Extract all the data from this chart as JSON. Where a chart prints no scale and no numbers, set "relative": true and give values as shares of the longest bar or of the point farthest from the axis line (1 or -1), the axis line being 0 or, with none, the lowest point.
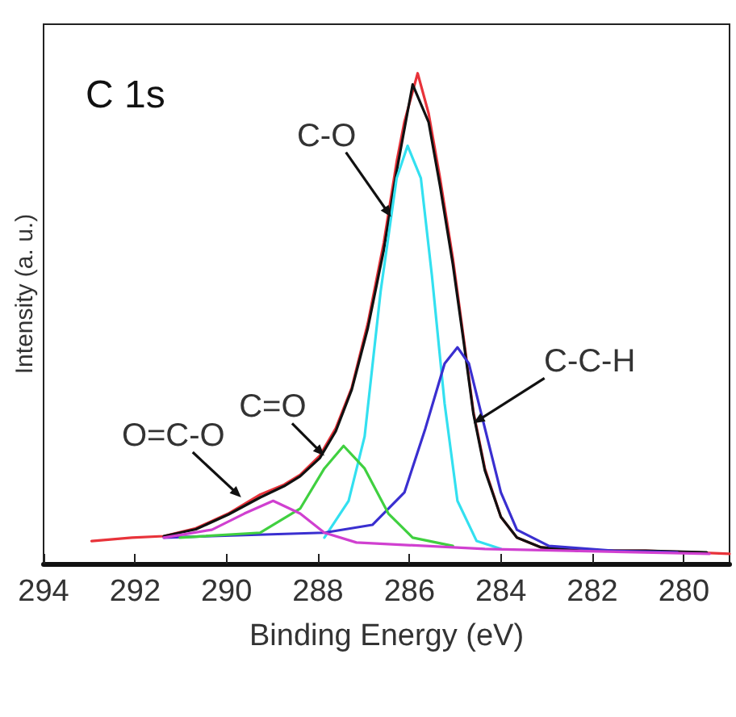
{
  "chart_data": {
    "type": "line",
    "title": "C 1s",
    "xlabel": "Binding Energy (eV)",
    "ylabel": "Intensity (a. u.)",
    "relative": true,
    "xlim": [
      294,
      279
    ],
    "xticks": [
      294,
      292,
      290,
      288,
      286,
      284,
      282,
      280
    ],
    "grid": false,
    "marker": "none",
    "line_style": "solid",
    "series": [
      {
        "color": "#e8333a",
        "x": [
          292.95,
          292.07,
          291.37,
          290.67,
          289.96,
          289.26,
          288.74,
          288.39,
          287.96,
          287.61,
          287.26,
          286.91,
          286.56,
          286.28,
          286.11,
          285.82,
          285.58,
          285.33,
          285.05,
          284.81,
          284.6,
          284.35,
          284.0,
          283.65,
          283.12,
          282.25,
          280.84,
          279.79,
          279.0
        ],
        "values": [
          0.046,
          0.053,
          0.056,
          0.072,
          0.102,
          0.141,
          0.161,
          0.181,
          0.22,
          0.276,
          0.359,
          0.49,
          0.655,
          0.819,
          0.901,
          1.0,
          0.918,
          0.786,
          0.622,
          0.457,
          0.309,
          0.194,
          0.095,
          0.053,
          0.033,
          0.026,
          0.026,
          0.023,
          0.02
        ]
      },
      {
        "color": "#111111",
        "x": [
          291.37,
          290.67,
          289.96,
          289.26,
          288.74,
          288.39,
          287.96,
          287.61,
          287.26,
          286.91,
          286.56,
          286.28,
          285.93,
          285.58,
          285.33,
          285.05,
          284.81,
          284.6,
          284.35,
          284.0,
          283.65,
          283.12,
          282.25,
          280.84,
          279.5
        ],
        "values": [
          0.056,
          0.07,
          0.1,
          0.135,
          0.158,
          0.178,
          0.215,
          0.27,
          0.355,
          0.48,
          0.64,
          0.8,
          0.977,
          0.9,
          0.77,
          0.61,
          0.45,
          0.305,
          0.19,
          0.095,
          0.053,
          0.033,
          0.026,
          0.026,
          0.023
        ]
      },
      {
        "color": "#33e0f0",
        "x": [
          287.86,
          287.33,
          286.98,
          286.63,
          286.28,
          286.04,
          285.75,
          285.51,
          285.23,
          284.95,
          284.53,
          284.0
        ],
        "values": [
          0.053,
          0.128,
          0.259,
          0.555,
          0.786,
          0.852,
          0.786,
          0.589,
          0.326,
          0.128,
          0.046,
          0.03
        ]
      },
      {
        "color": "#3a2fd0",
        "x": [
          291.37,
          287.86,
          286.81,
          286.11,
          285.65,
          285.23,
          284.95,
          284.7,
          284.35,
          284.0,
          283.65,
          282.95,
          281.54,
          280.14
        ],
        "values": [
          0.053,
          0.063,
          0.079,
          0.145,
          0.276,
          0.408,
          0.441,
          0.408,
          0.276,
          0.145,
          0.069,
          0.036,
          0.026,
          0.023
        ]
      },
      {
        "color": "#40d040",
        "x": [
          291.02,
          289.26,
          288.39,
          287.86,
          287.44,
          286.98,
          286.46,
          285.93,
          285.05
        ],
        "values": [
          0.053,
          0.063,
          0.112,
          0.194,
          0.24,
          0.194,
          0.102,
          0.053,
          0.036
        ]
      },
      {
        "color": "#d040d0",
        "x": [
          291.37,
          290.32,
          289.61,
          288.98,
          288.39,
          287.86,
          287.16,
          284.35,
          279.44
        ],
        "values": [
          0.053,
          0.069,
          0.102,
          0.128,
          0.102,
          0.063,
          0.043,
          0.03,
          0.02
        ]
      }
    ],
    "annotations": [
      {
        "text": "C-O",
        "x": 286.4,
        "y": 0.707
      },
      {
        "text": "C-C-H",
        "x": 284.6,
        "y": 0.286
      },
      {
        "text": "C=O",
        "x": 287.86,
        "y": 0.22
      },
      {
        "text": "O=C-O",
        "x": 289.68,
        "y": 0.135
      }
    ]
  }
}
